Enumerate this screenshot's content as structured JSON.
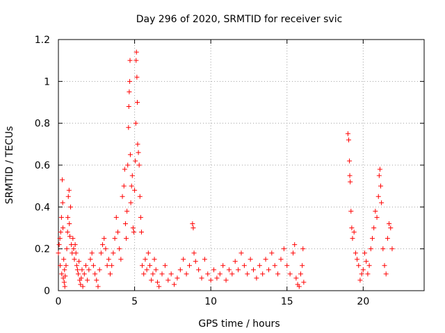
{
  "chart_data": {
    "type": "scatter",
    "title": "Day 296 of 2020, SRMTID for receiver svic",
    "xlabel": "GPS time / hours",
    "ylabel": "SRMTID / TECUs",
    "xlim": [
      0,
      24
    ],
    "ylim": [
      0,
      1.2
    ],
    "xticks": [
      0,
      5,
      10,
      15,
      20
    ],
    "xtick_labels": [
      "0",
      "5",
      "10",
      "15",
      "20"
    ],
    "yticks": [
      0,
      0.2,
      0.4,
      0.6,
      0.8,
      1.0,
      1.2
    ],
    "ytick_labels": [
      "0",
      "0.2",
      "0.4",
      "0.6",
      "0.8",
      "1",
      "1.2"
    ],
    "grid": true,
    "marker": "+",
    "marker_color": "#ff0000",
    "series": [
      {
        "name": "SRMTID",
        "points": [
          [
            0.0,
            0.18
          ],
          [
            0.05,
            0.22
          ],
          [
            0.1,
            0.25
          ],
          [
            0.12,
            0.12
          ],
          [
            0.15,
            0.28
          ],
          [
            0.2,
            0.35
          ],
          [
            0.22,
            0.08
          ],
          [
            0.25,
            0.53
          ],
          [
            0.28,
            0.42
          ],
          [
            0.3,
            0.3
          ],
          [
            0.32,
            0.06
          ],
          [
            0.35,
            0.15
          ],
          [
            0.38,
            0.04
          ],
          [
            0.4,
            0.1
          ],
          [
            0.42,
            0.02
          ],
          [
            0.45,
            0.07
          ],
          [
            0.5,
            0.12
          ],
          [
            0.55,
            0.2
          ],
          [
            0.6,
            0.28
          ],
          [
            0.62,
            0.35
          ],
          [
            0.65,
            0.45
          ],
          [
            0.7,
            0.48
          ],
          [
            0.72,
            0.32
          ],
          [
            0.75,
            0.26
          ],
          [
            0.8,
            0.4
          ],
          [
            0.85,
            0.22
          ],
          [
            0.9,
            0.18
          ],
          [
            0.95,
            0.25
          ],
          [
            1.0,
            0.2
          ],
          [
            1.05,
            0.15
          ],
          [
            1.1,
            0.22
          ],
          [
            1.15,
            0.18
          ],
          [
            1.2,
            0.12
          ],
          [
            1.25,
            0.1
          ],
          [
            1.3,
            0.08
          ],
          [
            1.35,
            0.14
          ],
          [
            1.4,
            0.05
          ],
          [
            1.45,
            0.03
          ],
          [
            1.5,
            0.06
          ],
          [
            1.55,
            0.1
          ],
          [
            1.6,
            0.02
          ],
          [
            1.7,
            0.08
          ],
          [
            1.8,
            0.12
          ],
          [
            1.9,
            0.05
          ],
          [
            2.0,
            0.1
          ],
          [
            2.1,
            0.15
          ],
          [
            2.2,
            0.18
          ],
          [
            2.3,
            0.12
          ],
          [
            2.4,
            0.08
          ],
          [
            2.5,
            0.05
          ],
          [
            2.6,
            0.02
          ],
          [
            2.7,
            0.1
          ],
          [
            2.8,
            0.18
          ],
          [
            2.9,
            0.22
          ],
          [
            3.0,
            0.25
          ],
          [
            3.1,
            0.2
          ],
          [
            3.2,
            0.12
          ],
          [
            3.3,
            0.15
          ],
          [
            3.4,
            0.08
          ],
          [
            3.5,
            0.12
          ],
          [
            3.6,
            0.18
          ],
          [
            3.7,
            0.25
          ],
          [
            3.8,
            0.35
          ],
          [
            3.9,
            0.28
          ],
          [
            4.0,
            0.2
          ],
          [
            4.1,
            0.15
          ],
          [
            4.2,
            0.45
          ],
          [
            4.3,
            0.5
          ],
          [
            4.35,
            0.58
          ],
          [
            4.4,
            0.32
          ],
          [
            4.45,
            0.25
          ],
          [
            4.5,
            0.38
          ],
          [
            4.55,
            0.6
          ],
          [
            4.6,
            0.78
          ],
          [
            4.62,
            0.88
          ],
          [
            4.65,
            0.95
          ],
          [
            4.68,
            1.0
          ],
          [
            4.7,
            1.1
          ],
          [
            4.72,
            0.65
          ],
          [
            4.75,
            0.42
          ],
          [
            4.8,
            0.5
          ],
          [
            4.85,
            0.55
          ],
          [
            4.9,
            0.3
          ],
          [
            4.95,
            0.28
          ],
          [
            5.0,
            0.48
          ],
          [
            5.05,
            0.62
          ],
          [
            5.08,
            0.8
          ],
          [
            5.1,
            1.1
          ],
          [
            5.12,
            1.14
          ],
          [
            5.15,
            1.02
          ],
          [
            5.18,
            0.9
          ],
          [
            5.2,
            0.7
          ],
          [
            5.25,
            0.66
          ],
          [
            5.3,
            0.6
          ],
          [
            5.35,
            0.45
          ],
          [
            5.4,
            0.35
          ],
          [
            5.45,
            0.28
          ],
          [
            5.5,
            0.12
          ],
          [
            5.6,
            0.08
          ],
          [
            5.7,
            0.15
          ],
          [
            5.8,
            0.1
          ],
          [
            5.9,
            0.18
          ],
          [
            6.0,
            0.12
          ],
          [
            6.1,
            0.05
          ],
          [
            6.2,
            0.08
          ],
          [
            6.3,
            0.15
          ],
          [
            6.4,
            0.1
          ],
          [
            6.5,
            0.04
          ],
          [
            6.6,
            0.02
          ],
          [
            6.8,
            0.08
          ],
          [
            7.0,
            0.12
          ],
          [
            7.2,
            0.05
          ],
          [
            7.4,
            0.08
          ],
          [
            7.6,
            0.03
          ],
          [
            7.8,
            0.06
          ],
          [
            8.0,
            0.1
          ],
          [
            8.2,
            0.15
          ],
          [
            8.4,
            0.08
          ],
          [
            8.6,
            0.12
          ],
          [
            8.8,
            0.32
          ],
          [
            8.85,
            0.3
          ],
          [
            8.9,
            0.18
          ],
          [
            9.0,
            0.14
          ],
          [
            9.2,
            0.1
          ],
          [
            9.4,
            0.06
          ],
          [
            9.6,
            0.15
          ],
          [
            9.8,
            0.08
          ],
          [
            10.0,
            0.05
          ],
          [
            10.2,
            0.1
          ],
          [
            10.4,
            0.06
          ],
          [
            10.6,
            0.08
          ],
          [
            10.8,
            0.12
          ],
          [
            11.0,
            0.05
          ],
          [
            11.2,
            0.1
          ],
          [
            11.4,
            0.08
          ],
          [
            11.6,
            0.14
          ],
          [
            11.8,
            0.1
          ],
          [
            12.0,
            0.18
          ],
          [
            12.2,
            0.12
          ],
          [
            12.4,
            0.08
          ],
          [
            12.6,
            0.15
          ],
          [
            12.8,
            0.1
          ],
          [
            13.0,
            0.06
          ],
          [
            13.2,
            0.12
          ],
          [
            13.4,
            0.08
          ],
          [
            13.6,
            0.15
          ],
          [
            13.8,
            0.1
          ],
          [
            14.0,
            0.18
          ],
          [
            14.2,
            0.12
          ],
          [
            14.4,
            0.08
          ],
          [
            14.6,
            0.15
          ],
          [
            14.8,
            0.2
          ],
          [
            15.0,
            0.12
          ],
          [
            15.2,
            0.08
          ],
          [
            15.4,
            0.18
          ],
          [
            15.5,
            0.22
          ],
          [
            15.6,
            0.06
          ],
          [
            15.7,
            0.03
          ],
          [
            15.8,
            0.02
          ],
          [
            15.9,
            0.08
          ],
          [
            16.0,
            0.12
          ],
          [
            16.05,
            0.2
          ],
          [
            16.1,
            0.04
          ],
          [
            19.0,
            0.75
          ],
          [
            19.05,
            0.72
          ],
          [
            19.1,
            0.62
          ],
          [
            19.12,
            0.55
          ],
          [
            19.15,
            0.52
          ],
          [
            19.2,
            0.38
          ],
          [
            19.25,
            0.3
          ],
          [
            19.3,
            0.25
          ],
          [
            19.4,
            0.28
          ],
          [
            19.5,
            0.18
          ],
          [
            19.6,
            0.15
          ],
          [
            19.7,
            0.12
          ],
          [
            19.8,
            0.05
          ],
          [
            19.9,
            0.08
          ],
          [
            20.0,
            0.1
          ],
          [
            20.1,
            0.18
          ],
          [
            20.2,
            0.14
          ],
          [
            20.3,
            0.08
          ],
          [
            20.4,
            0.12
          ],
          [
            20.5,
            0.2
          ],
          [
            20.6,
            0.25
          ],
          [
            20.7,
            0.3
          ],
          [
            20.8,
            0.38
          ],
          [
            20.9,
            0.35
          ],
          [
            21.0,
            0.45
          ],
          [
            21.05,
            0.55
          ],
          [
            21.1,
            0.58
          ],
          [
            21.15,
            0.5
          ],
          [
            21.2,
            0.42
          ],
          [
            21.3,
            0.2
          ],
          [
            21.4,
            0.12
          ],
          [
            21.5,
            0.08
          ],
          [
            21.6,
            0.25
          ],
          [
            21.7,
            0.32
          ],
          [
            21.8,
            0.3
          ],
          [
            21.9,
            0.2
          ]
        ]
      }
    ]
  }
}
